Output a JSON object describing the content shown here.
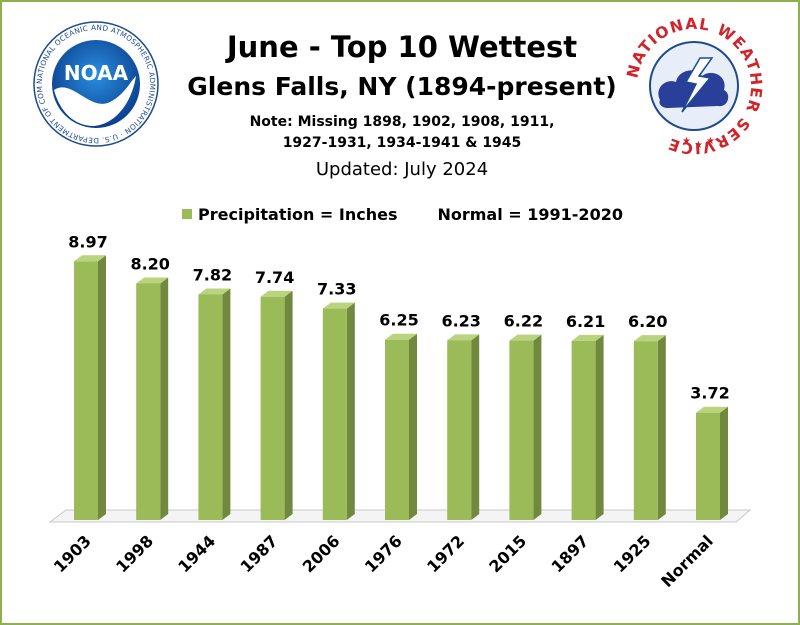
{
  "header": {
    "title": "June - Top 10 Wettest",
    "subtitle": "Glens Falls, NY (1894-present)",
    "note_line1": "Note: Missing 1898, 1902, 1908, 1911,",
    "note_line2": "1927-1931, 1934-1941 & 1945",
    "updated": "Updated: July 2024"
  },
  "legend": {
    "series_label": "Precipitation = Inches",
    "normal_label": "Normal = 1991-2020"
  },
  "logos": {
    "noaa": {
      "center_text": "NOAA",
      "ring_text": "NATIONAL OCEANIC AND ATMOSPHERIC ADMINISTRATION · U.S. DEPARTMENT OF COMMERCE"
    },
    "nws": {
      "ring_text": "NATIONAL WEATHER SERVICE"
    }
  },
  "colors": {
    "bar_front": "#9bbb59",
    "bar_side": "#71893f",
    "bar_top": "#b9d37f",
    "border": "#8db050"
  },
  "chart_data": {
    "type": "bar",
    "categories": [
      "1903",
      "1998",
      "1944",
      "1987",
      "2006",
      "1976",
      "1972",
      "2015",
      "1897",
      "1925",
      "Normal"
    ],
    "series": [
      {
        "name": "Precipitation = Inches",
        "values": [
          8.97,
          8.2,
          7.82,
          7.74,
          7.33,
          6.25,
          6.23,
          6.22,
          6.21,
          6.2,
          3.72
        ]
      }
    ],
    "data_labels": [
      "8.97",
      "8.20",
      "7.82",
      "7.74",
      "7.33",
      "6.25",
      "6.23",
      "6.22",
      "6.21",
      "6.20",
      "3.72"
    ],
    "title": "June - Top 10 Wettest",
    "xlabel": "",
    "ylabel": "",
    "ylim": [
      0,
      9.5
    ],
    "grid": false,
    "legend": "top"
  }
}
